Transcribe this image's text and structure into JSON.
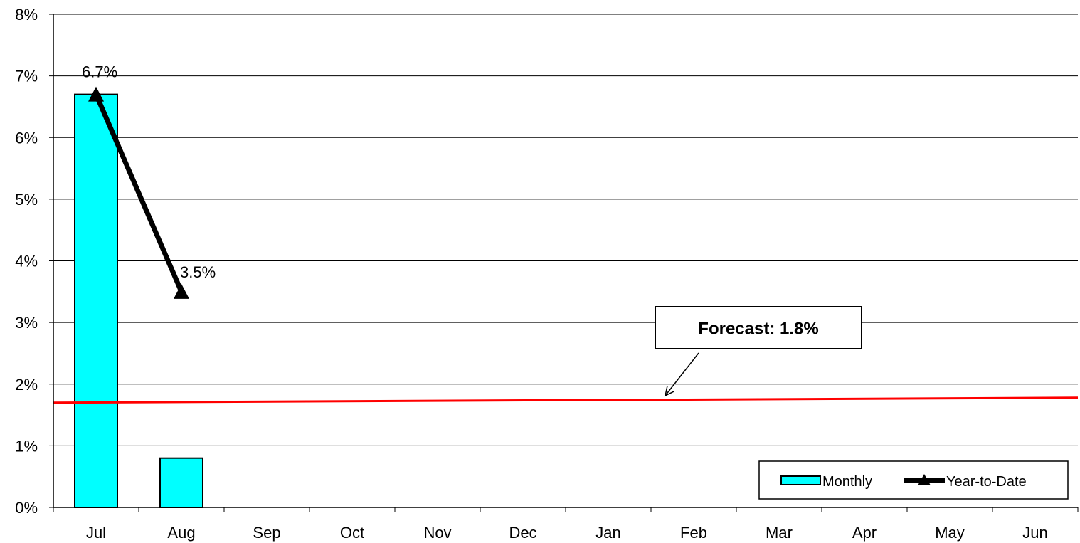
{
  "chart_data": {
    "type": "bar",
    "categories": [
      "Jul",
      "Aug",
      "Sep",
      "Oct",
      "Nov",
      "Dec",
      "Jan",
      "Feb",
      "Mar",
      "Apr",
      "May",
      "Jun"
    ],
    "series": [
      {
        "name": "Monthly",
        "type": "bar",
        "color": "#00FFFF",
        "values": [
          6.7,
          0.8,
          null,
          null,
          null,
          null,
          null,
          null,
          null,
          null,
          null,
          null
        ]
      },
      {
        "name": "Year-to-Date",
        "type": "line",
        "color": "#000000",
        "marker": "triangle",
        "values": [
          6.7,
          3.5,
          null,
          null,
          null,
          null,
          null,
          null,
          null,
          null,
          null,
          null
        ],
        "data_labels": [
          "6.7%",
          "3.5%"
        ]
      }
    ],
    "forecast": {
      "label": "Forecast: 1.8%",
      "value_start": 1.7,
      "value_end": 1.78,
      "color": "#FF0000"
    },
    "y_ticks": [
      "0%",
      "1%",
      "2%",
      "3%",
      "4%",
      "5%",
      "6%",
      "7%",
      "8%"
    ],
    "ylim": [
      0,
      8
    ],
    "grid": true,
    "legend": {
      "position": "bottom-right",
      "entries": [
        "Monthly",
        "Year-to-Date"
      ]
    }
  }
}
